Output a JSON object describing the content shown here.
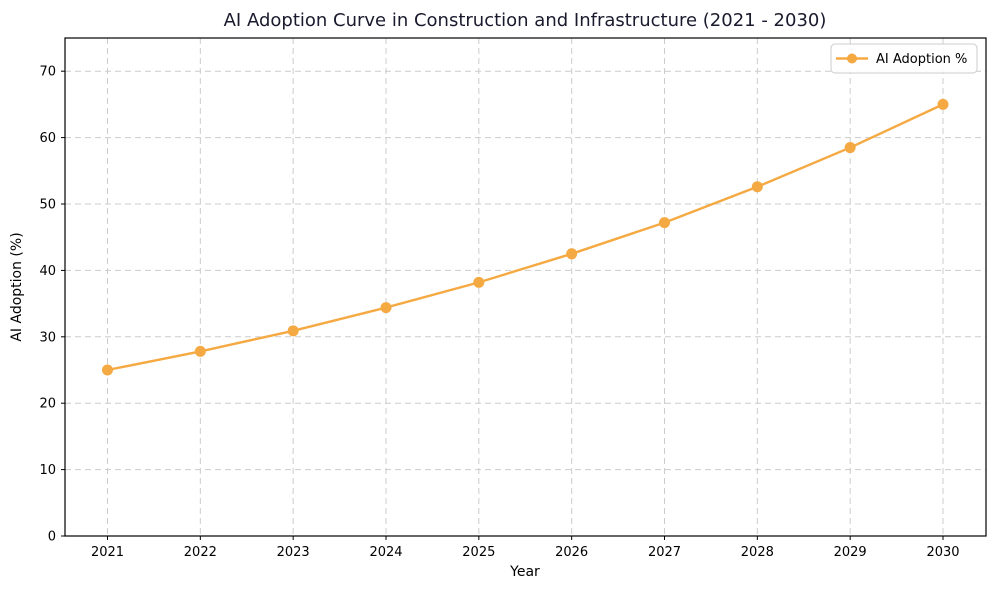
{
  "chart_data": {
    "type": "line",
    "title": "AI Adoption Curve in Construction and Infrastructure (2021 - 2030)",
    "xlabel": "Year",
    "ylabel": "AI Adoption (%)",
    "x": [
      "2021",
      "2022",
      "2023",
      "2024",
      "2025",
      "2026",
      "2027",
      "2028",
      "2029",
      "2030"
    ],
    "series": [
      {
        "name": "AI Adoption %",
        "values": [
          25.0,
          27.8,
          30.9,
          34.4,
          38.2,
          42.5,
          47.2,
          52.6,
          58.5,
          65.0
        ],
        "color": "#F5A942",
        "marker": "circle"
      }
    ],
    "ylim": [
      0,
      75
    ],
    "yticks": [
      0,
      10,
      20,
      30,
      40,
      50,
      60,
      70
    ],
    "grid": {
      "visible": true,
      "style": "dashed",
      "color": "#cccccc"
    },
    "legend": {
      "position": "top-right",
      "labels": [
        "AI Adoption %"
      ]
    },
    "colors": {
      "line": "#F5A942",
      "title": "#1a1a2e",
      "axis_text": "#000000",
      "spine": "#000000",
      "background": "#ffffff",
      "legend_border": "#cccccc"
    }
  }
}
